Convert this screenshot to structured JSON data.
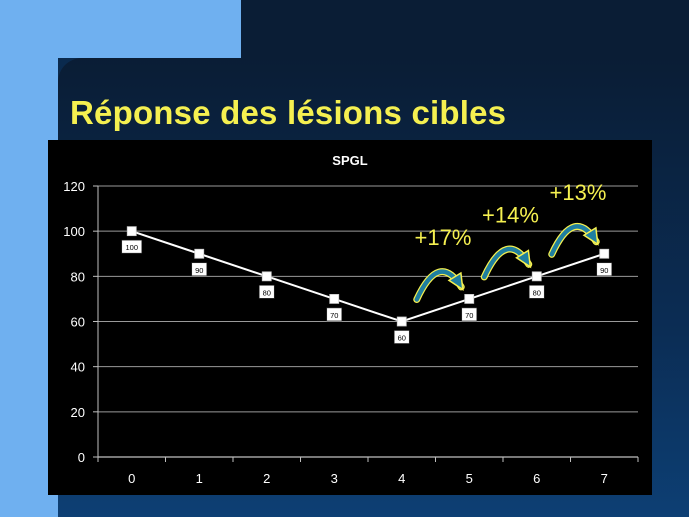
{
  "slide": {
    "title": "Réponse des lésions cibles"
  },
  "colors": {
    "title": "#f5f050",
    "annotation": "#f5f050",
    "line": "#ffffff",
    "chart_background": "#000000",
    "arrow_fill": "#1f7fa0",
    "arrow_outline": "#f5f050"
  },
  "chart_data": {
    "type": "line",
    "title": "SPGL",
    "xlabel": "",
    "ylabel": "",
    "x": [
      0,
      1,
      2,
      3,
      4,
      5,
      6,
      7
    ],
    "xlim": [
      0,
      7
    ],
    "ylim": [
      0,
      120
    ],
    "yticks": [
      0,
      20,
      40,
      60,
      80,
      100,
      120
    ],
    "grid": "horizontal",
    "legend": "none",
    "series": [
      {
        "values": [
          100,
          90,
          80,
          70,
          60,
          70,
          80,
          90
        ],
        "data_labels": [
          "100",
          "90",
          "80",
          "70",
          "60",
          "70",
          "80",
          "90"
        ]
      }
    ],
    "annotations": [
      {
        "text": "+17%",
        "from_x": 4,
        "to_x": 5
      },
      {
        "text": "+14%",
        "from_x": 5,
        "to_x": 6
      },
      {
        "text": "+13%",
        "from_x": 6,
        "to_x": 7
      }
    ]
  }
}
